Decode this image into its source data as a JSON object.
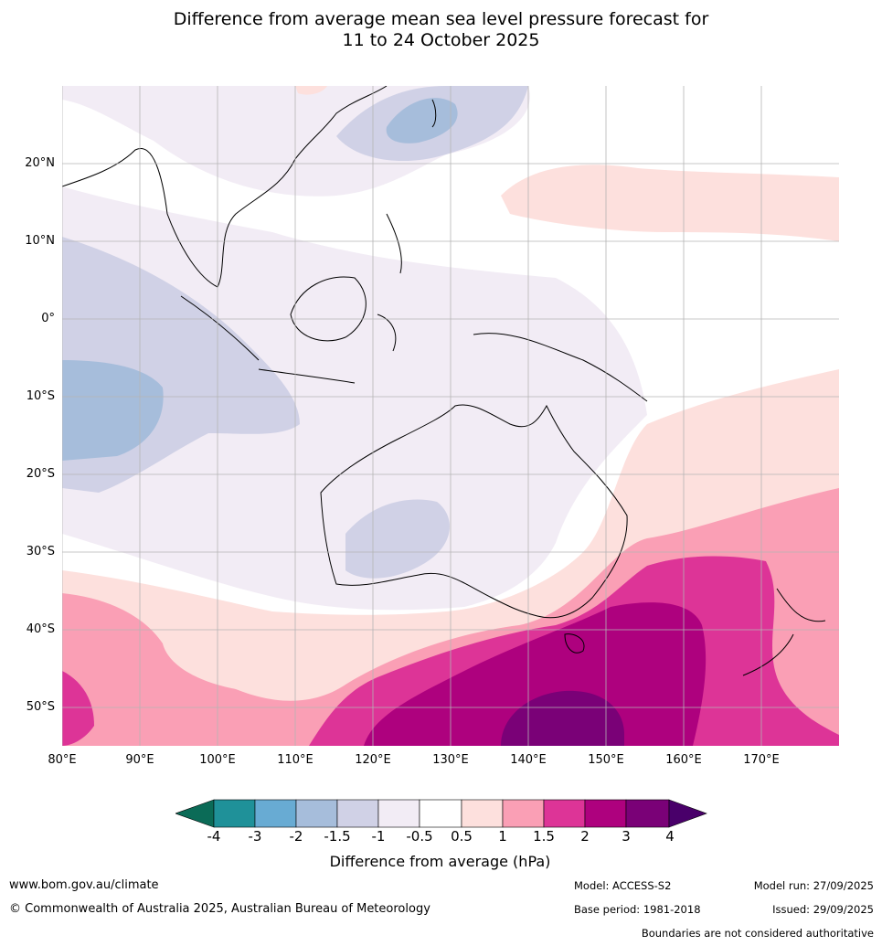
{
  "title": {
    "line1": "Difference from average mean sea level pressure forecast for",
    "line2": "11 to 24 October 2025"
  },
  "map": {
    "lon_labels": [
      "80°E",
      "90°E",
      "100°E",
      "110°E",
      "120°E",
      "130°E",
      "140°E",
      "150°E",
      "160°E",
      "170°E"
    ],
    "lat_labels": [
      "20°N",
      "10°N",
      "0°",
      "10°S",
      "20°S",
      "30°S",
      "40°S",
      "50°S"
    ]
  },
  "colorbar": {
    "labels": [
      "-4",
      "-3",
      "-2",
      "-1.5",
      "-1",
      "-0.5",
      "0.5",
      "1",
      "1.5",
      "2",
      "3",
      "4"
    ],
    "colors": [
      "#0b6b57",
      "#1f9199",
      "#68abd3",
      "#a6bddb",
      "#d0d1e6",
      "#f2ecf5",
      "#ffffff",
      "#fde0dd",
      "#fa9fb5",
      "#dd3497",
      "#ae017e",
      "#7a0177",
      "#49006a"
    ],
    "title": "Difference from average (hPa)"
  },
  "footer": {
    "website": "www.bom.gov.au/climate",
    "copyright": "© Commonwealth of Australia 2025, Australian Bureau of Meteorology",
    "model": "Model: ACCESS-S2",
    "base_period": "Base period: 1981-2018",
    "model_run": "Model run: 27/09/2025",
    "issued": "Issued: 29/09/2025",
    "disclaimer": "Boundaries are not considered authoritative"
  }
}
